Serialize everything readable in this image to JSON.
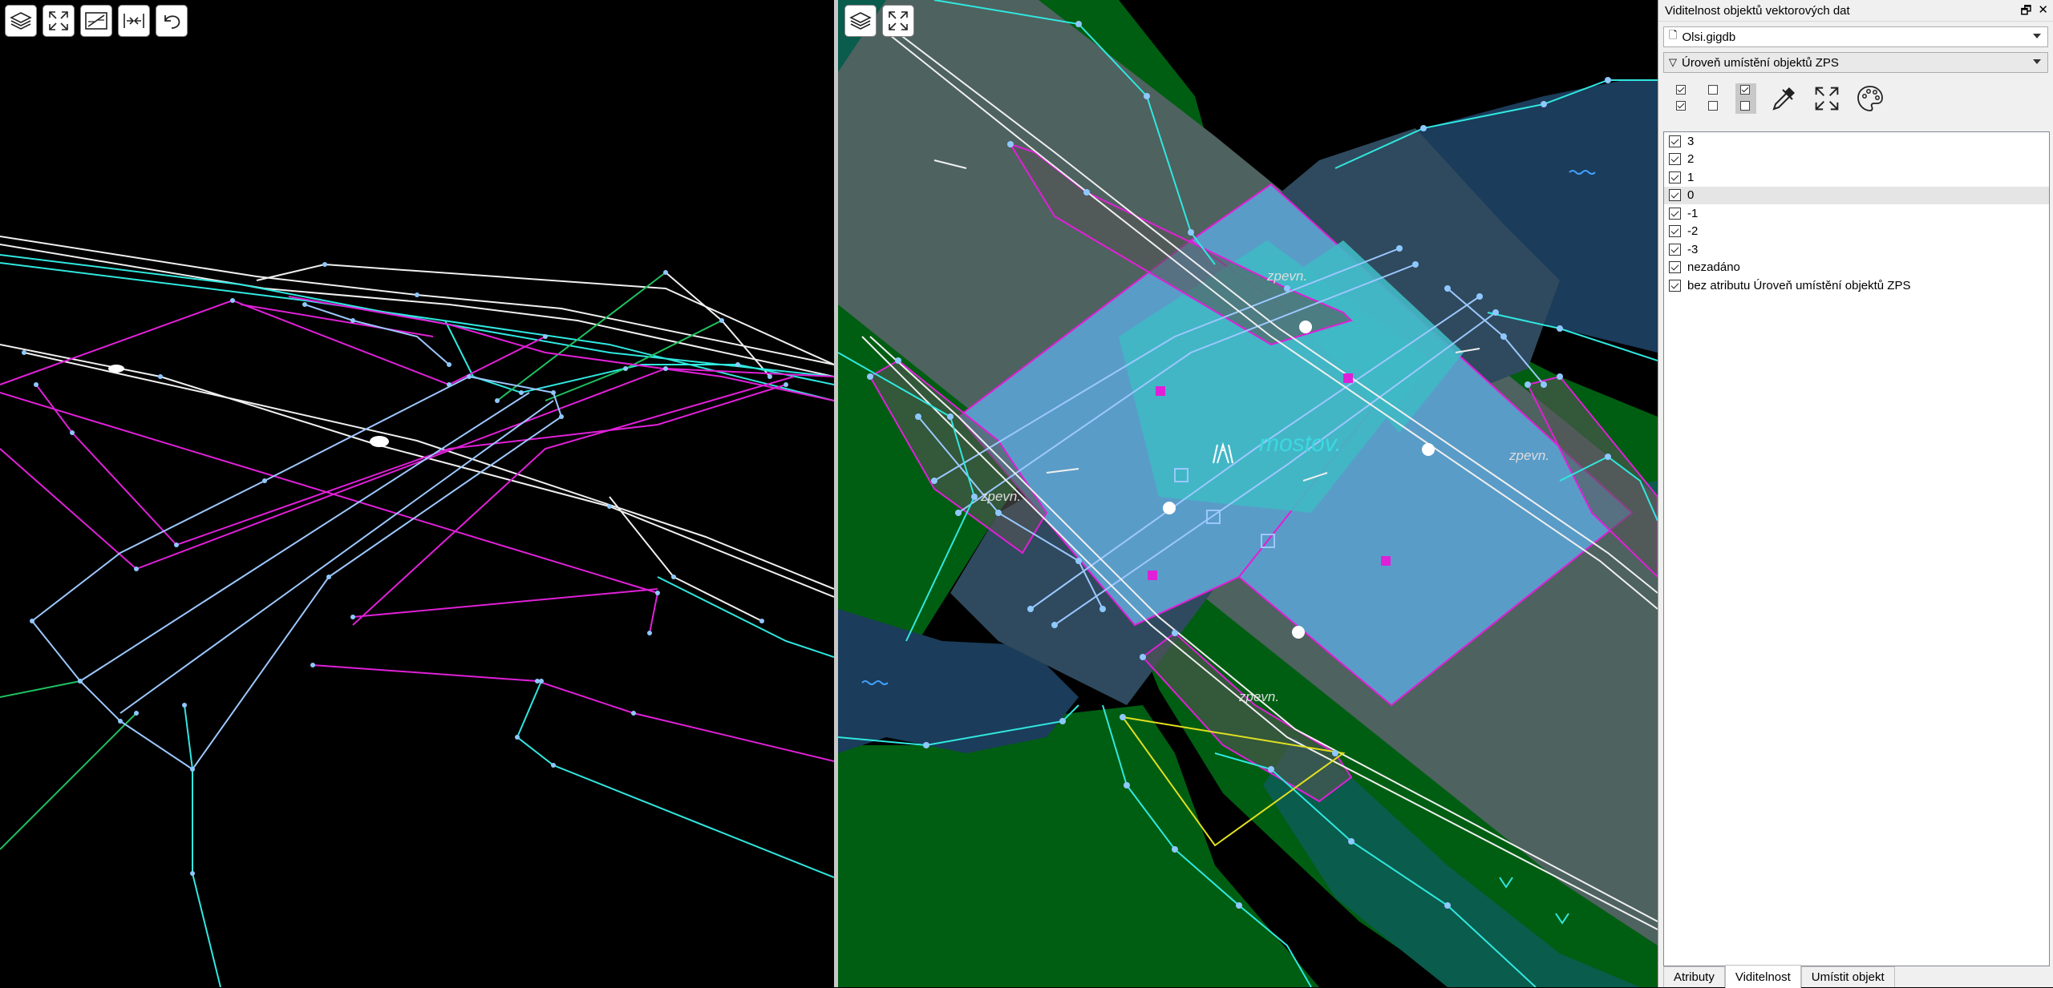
{
  "panel": {
    "title": "Viditelnost objektů vektorových dat",
    "float_glyph": "🗗",
    "close_glyph": "✕",
    "file_combo": "Olsi.gigdb",
    "filter_combo": "Úroveň umístění objektů ZPS",
    "levels": [
      {
        "label": "3",
        "checked": true
      },
      {
        "label": "2",
        "checked": true
      },
      {
        "label": "1",
        "checked": true
      },
      {
        "label": "0",
        "checked": true,
        "selected": true
      },
      {
        "label": "-1",
        "checked": true
      },
      {
        "label": "-2",
        "checked": true
      },
      {
        "label": "-3",
        "checked": true
      },
      {
        "label": "nezadáno",
        "checked": true
      },
      {
        "label": "bez atributu Úroveň umístění objektů ZPS",
        "checked": true
      }
    ],
    "tabs": [
      "Atributy",
      "Viditelnost",
      "Umístit objekt"
    ],
    "active_tab": "Viditelnost"
  },
  "map_labels": {
    "bridge": "mostov.",
    "paved_a": "zpevn.",
    "paved_b": "zpevn.",
    "paved_c": "zpevn.",
    "paved_d": "zpevn."
  },
  "icons": {
    "left_toolbar": [
      "layers-icon",
      "fullscreen-icon",
      "split-view-icon",
      "collapse-view-icon",
      "undo-icon"
    ],
    "right_toolbar": [
      "layers-icon",
      "fullscreen-icon"
    ],
    "panel_tools": [
      "check-all-icon",
      "uncheck-all-icon",
      "toggle-selected-icon",
      "eyedropper-icon",
      "fit-extent-icon",
      "palette-icon"
    ]
  },
  "colors": {
    "green": "#005e12",
    "teal": "#0a5c4c",
    "grey_road": "#4e625f",
    "bridge_blue": "#5a9cc8",
    "bridge_cyan": "#3fb9c4",
    "water": "#1b3c5a",
    "magenta": "#e020d8",
    "cyan_line": "#30e8e0",
    "vertex": "#8ec8ff"
  }
}
